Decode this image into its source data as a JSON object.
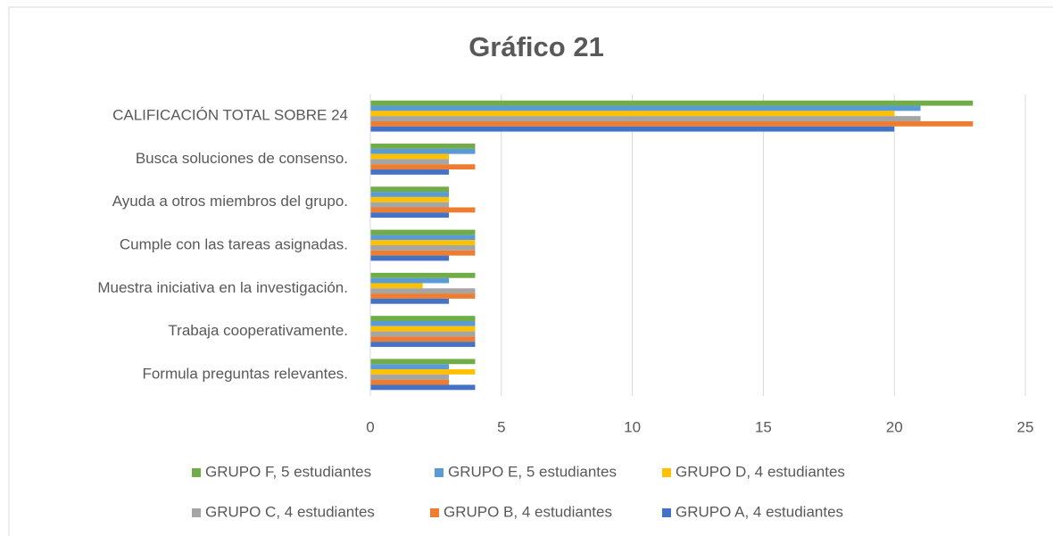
{
  "chart_data": {
    "type": "hbar",
    "title": "Gráfico 21",
    "categories": [
      "CALIFICACIÓN TOTAL SOBRE 24",
      "Busca soluciones de consenso.",
      "Ayuda a otros miembros del grupo.",
      "Cumple con las tareas asignadas.",
      "Muestra iniciativa en la investigación.",
      "Trabaja cooperativamente.",
      "Formula preguntas relevantes."
    ],
    "series": [
      {
        "name": "GRUPO F, 5 estudiantes",
        "color": "#70ad47",
        "values": [
          23,
          4,
          3,
          4,
          4,
          4,
          4
        ]
      },
      {
        "name": "GRUPO E, 5 estudiantes",
        "color": "#5b9bd5",
        "values": [
          21,
          4,
          3,
          4,
          3,
          4,
          3
        ]
      },
      {
        "name": "GRUPO D, 4 estudiantes",
        "color": "#ffc000",
        "values": [
          20,
          3,
          3,
          4,
          2,
          4,
          4
        ]
      },
      {
        "name": "GRUPO C, 4 estudiantes",
        "color": "#a5a5a5",
        "values": [
          21,
          3,
          3,
          4,
          4,
          4,
          3
        ]
      },
      {
        "name": "GRUPO B, 4 estudiantes",
        "color": "#ed7d31",
        "values": [
          23,
          4,
          4,
          4,
          4,
          4,
          3
        ]
      },
      {
        "name": "GRUPO A, 4 estudiantes",
        "color": "#4472c4",
        "values": [
          20,
          3,
          3,
          3,
          3,
          4,
          4
        ]
      }
    ],
    "xlim": [
      0,
      25
    ],
    "xticks": [
      0,
      5,
      10,
      15,
      20,
      25
    ],
    "grid": true
  }
}
